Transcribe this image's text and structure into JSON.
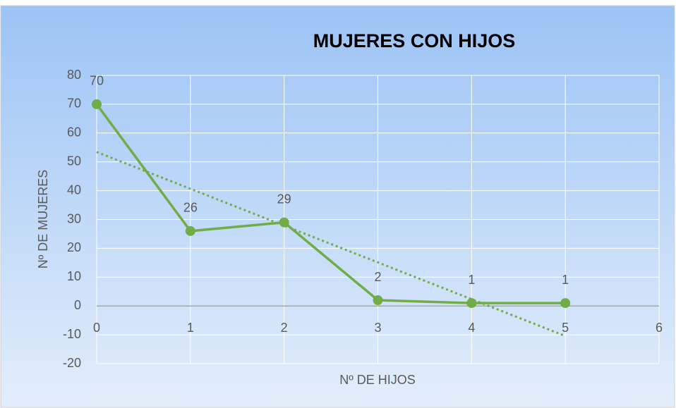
{
  "chart_data": {
    "type": "line",
    "title": "MUJERES CON HIJOS",
    "x_label": "Nº DE HIJOS",
    "y_label": "Nº DE MUJERES",
    "x": [
      0,
      1,
      2,
      3,
      4,
      5
    ],
    "series": [
      {
        "name": "MUJERES",
        "color": "#70ad47",
        "values": [
          70,
          26,
          29,
          2,
          1,
          1
        ]
      }
    ],
    "xlim": [
      0,
      6
    ],
    "xticks": [
      0,
      1,
      2,
      3,
      4,
      5,
      6
    ],
    "ylim": [
      -20,
      80
    ],
    "yticks": [
      -20,
      -10,
      0,
      10,
      20,
      30,
      40,
      50,
      60,
      70,
      80
    ],
    "grid": true,
    "trendline": "linear",
    "data_labels": true
  }
}
